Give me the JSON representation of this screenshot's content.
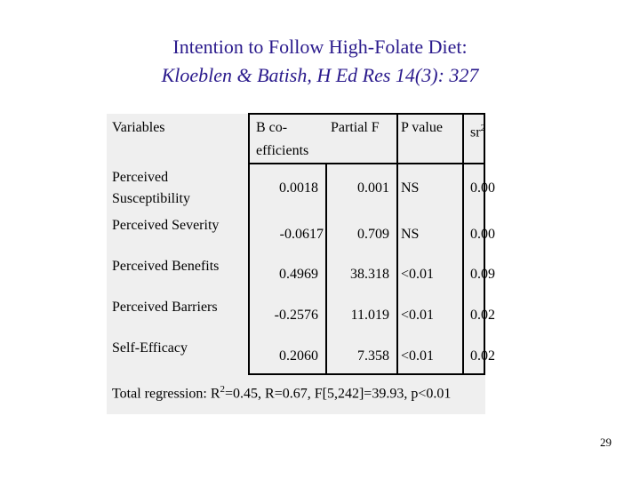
{
  "slide": {
    "title": "Intention to Follow High-Folate Diet:",
    "subtitle": "Kloeblen & Batish, H Ed Res 14(3): 327",
    "page_number": "29"
  },
  "table": {
    "headers": {
      "variables": "Variables",
      "b_coef_line1": "B co-",
      "b_coef_line2": "efficients",
      "partial_f": "Partial F",
      "p_value": "P value",
      "sr2_base": "sr",
      "sr2_sup": "2"
    },
    "rows": [
      {
        "variable_line1": "Perceived",
        "variable_line2": "Susceptibility",
        "b": "0.0018",
        "f": "0.001",
        "p": "NS",
        "sr2": "0.00"
      },
      {
        "variable_line1": "Perceived Severity",
        "variable_line2": "",
        "b": "-0.0617",
        "f": "0.709",
        "p": "NS",
        "sr2": "0.00"
      },
      {
        "variable_line1": "Perceived Benefits",
        "variable_line2": "",
        "b": "0.4969",
        "f": "38.318",
        "p": "<0.01",
        "sr2": "0.09"
      },
      {
        "variable_line1": "Perceived Barriers",
        "variable_line2": "",
        "b": "-0.2576",
        "f": "11.019",
        "p": "<0.01",
        "sr2": "0.02"
      },
      {
        "variable_line1": "Self-Efficacy",
        "variable_line2": "",
        "b": "0.2060",
        "f": "7.358",
        "p": "<0.01",
        "sr2": "0.02"
      }
    ],
    "footer": {
      "prefix": "Total regression: R",
      "sup": "2",
      "suffix": "=0.45, R=0.67, F[5,242]=39.93, p<0.01"
    }
  }
}
